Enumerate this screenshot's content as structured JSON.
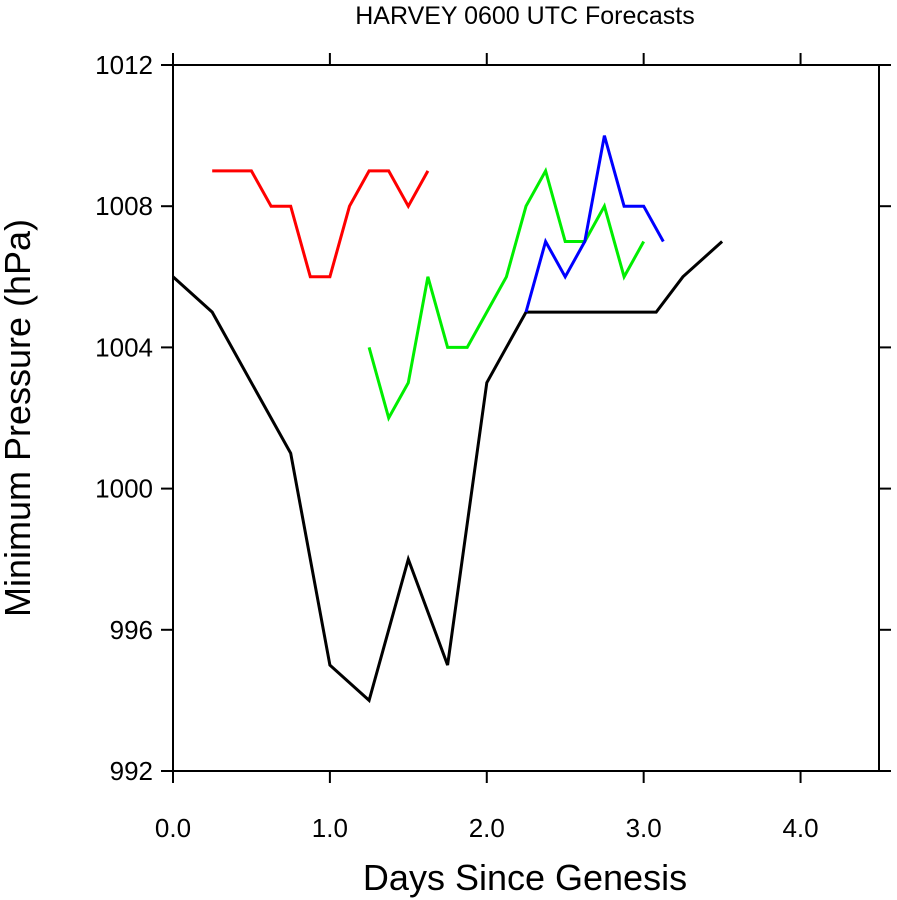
{
  "chart_data": {
    "type": "line",
    "title": "HARVEY 0600 UTC Forecasts",
    "xlabel": "Days Since Genesis",
    "ylabel": "Minimum Pressure (hPa)",
    "xlim": [
      0,
      4.5
    ],
    "ylim": [
      992,
      1012
    ],
    "xticks": [
      0,
      1,
      2,
      3,
      4
    ],
    "xtick_labels": [
      "0.0",
      "1.0",
      "2.0",
      "3.0",
      "4.0"
    ],
    "yticks": [
      992,
      996,
      1000,
      1004,
      1008,
      1012
    ],
    "ytick_labels": [
      "992",
      "996",
      "1000",
      "1004",
      "1008",
      "1012"
    ],
    "grid": false,
    "legend": "none",
    "series": [
      {
        "color": "#000000",
        "x": [
          0,
          0.25,
          0.5,
          0.75,
          1.0,
          1.25,
          1.5,
          1.75,
          2.0,
          2.25,
          2.5,
          2.75,
          3.0,
          3.08,
          3.25,
          3.5
        ],
        "y": [
          1006,
          1005,
          1003,
          1001,
          995,
          994,
          998,
          995,
          1003,
          1005,
          1005,
          1005,
          1005,
          1005,
          1006,
          1007
        ]
      },
      {
        "color": "#ff0000",
        "x": [
          0.25,
          0.375,
          0.5,
          0.625,
          0.75,
          0.875,
          1.0,
          1.125,
          1.25,
          1.375,
          1.5,
          1.625
        ],
        "y": [
          1009,
          1009,
          1009,
          1008,
          1008,
          1006,
          1006,
          1008,
          1009,
          1009,
          1008,
          1009
        ]
      },
      {
        "color": "#00ee00",
        "x": [
          1.25,
          1.375,
          1.5,
          1.625,
          1.75,
          1.875,
          2.0,
          2.125,
          2.25,
          2.375,
          2.5,
          2.625,
          2.75,
          2.875,
          3.0
        ],
        "y": [
          1004,
          1002,
          1003,
          1006,
          1004,
          1004,
          1005,
          1006,
          1008,
          1009,
          1007,
          1007,
          1008,
          1006,
          1007
        ]
      },
      {
        "color": "#0000ff",
        "x": [
          2.25,
          2.375,
          2.5,
          2.625,
          2.75,
          2.875,
          3.0,
          3.125
        ],
        "y": [
          1005,
          1007,
          1006,
          1007,
          1010,
          1008,
          1008,
          1007
        ]
      }
    ]
  }
}
